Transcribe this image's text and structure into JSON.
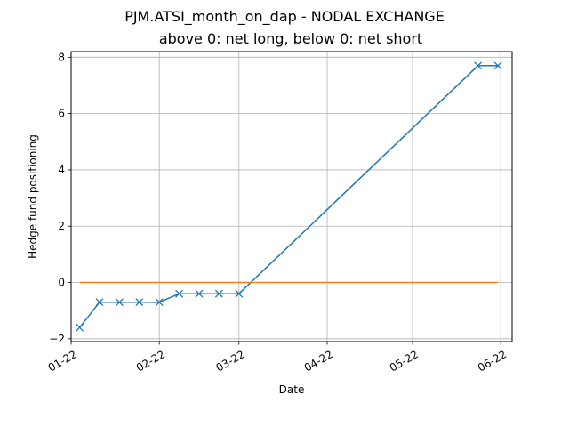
{
  "chart_data": {
    "type": "line",
    "title": "PJM.ATSI_month_on_dap - NODAL EXCHANGE",
    "subtitle": "above 0: net long, below 0: net short",
    "xlabel": "Date",
    "ylabel": "Hedge fund positioning",
    "xlim": [
      "2022-01-01",
      "2022-06-05"
    ],
    "ylim": [
      -2.1,
      8.2
    ],
    "grid": true,
    "x_ticks": [
      {
        "date": "2022-01-01",
        "label": "01-22"
      },
      {
        "date": "2022-02-01",
        "label": "02-22"
      },
      {
        "date": "2022-03-01",
        "label": "03-22"
      },
      {
        "date": "2022-04-01",
        "label": "04-22"
      },
      {
        "date": "2022-05-01",
        "label": "05-22"
      },
      {
        "date": "2022-06-01",
        "label": "06-22"
      }
    ],
    "y_ticks": [
      {
        "value": -2,
        "label": "−2"
      },
      {
        "value": 0,
        "label": "0"
      },
      {
        "value": 2,
        "label": "2"
      },
      {
        "value": 4,
        "label": "4"
      },
      {
        "value": 6,
        "label": "6"
      },
      {
        "value": 8,
        "label": "8"
      }
    ],
    "series": [
      {
        "color": "#1f77b4",
        "marker": "x",
        "points": [
          {
            "x": "2022-01-04",
            "y": -1.6
          },
          {
            "x": "2022-01-11",
            "y": -0.7
          },
          {
            "x": "2022-01-18",
            "y": -0.7
          },
          {
            "x": "2022-01-25",
            "y": -0.7
          },
          {
            "x": "2022-02-01",
            "y": -0.7
          },
          {
            "x": "2022-02-08",
            "y": -0.4
          },
          {
            "x": "2022-02-15",
            "y": -0.4
          },
          {
            "x": "2022-02-22",
            "y": -0.4
          },
          {
            "x": "2022-03-01",
            "y": -0.4
          },
          {
            "x": "2022-05-24",
            "y": 7.7
          },
          {
            "x": "2022-05-31",
            "y": 7.7
          }
        ]
      },
      {
        "color": "#ff7f0e",
        "marker": "none",
        "points": [
          {
            "x": "2022-01-04",
            "y": 0
          },
          {
            "x": "2022-05-31",
            "y": 0
          }
        ]
      }
    ]
  }
}
